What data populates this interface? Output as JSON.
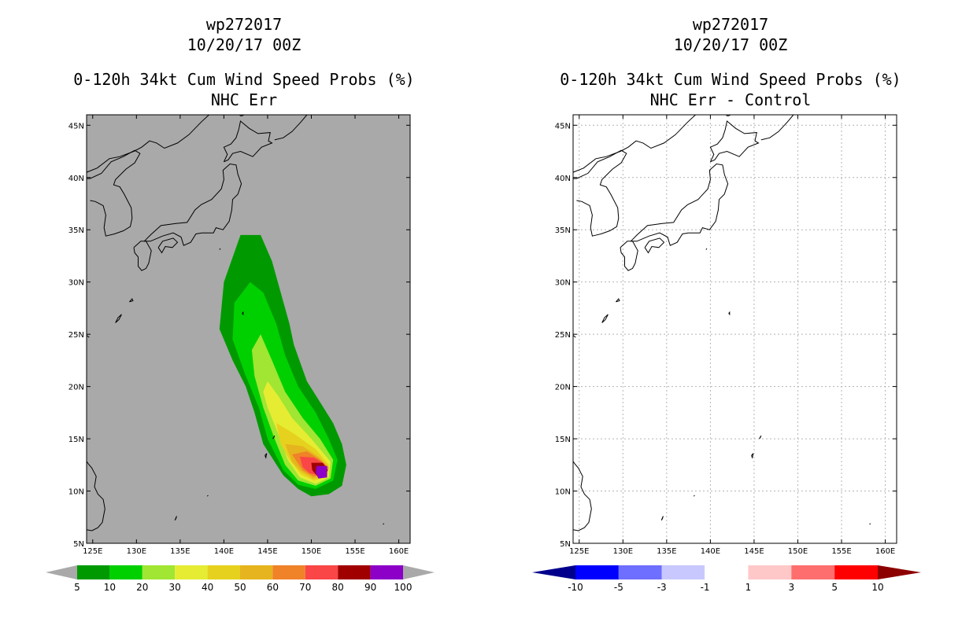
{
  "left": {
    "title": {
      "line1": "wp272017",
      "line2": "10/20/17 00Z",
      "line3": "0-120h 34kt Cum Wind Speed Probs (%)",
      "line4": "NHC Err"
    },
    "colors": {
      "background": "#a9a9a9",
      "land_outline": "#000000"
    },
    "colorbar": {
      "labels": [
        "5",
        "10",
        "20",
        "30",
        "40",
        "50",
        "60",
        "70",
        "80",
        "90",
        "100"
      ],
      "colors": [
        "#009a00",
        "#00d000",
        "#a0e632",
        "#e6ec32",
        "#e6d21e",
        "#e6b41e",
        "#f08228",
        "#fa4646",
        "#a00000",
        "#8c00c8"
      ],
      "low_arrow": "#a9a9a9",
      "high_arrow": "#a9a9a9"
    }
  },
  "right": {
    "title": {
      "line1": "wp272017",
      "line2": "10/20/17 00Z",
      "line3": "0-120h 34kt Cum Wind Speed Probs (%)",
      "line4": "NHC Err - Control"
    },
    "colors": {
      "background": "#ffffff",
      "land_outline": "#000000",
      "grid": "#b4b4b4"
    },
    "colorbar": {
      "labels": [
        "-10",
        "-5",
        "-3",
        "-1",
        "1",
        "3",
        "5",
        "10"
      ],
      "colors": [
        "#0000ff",
        "#6e6eff",
        "#c8c8ff",
        "#ffffff",
        "#ffc8c8",
        "#ff6e6e",
        "#ff0000"
      ],
      "low_arrow": "#00008c",
      "high_arrow": "#8c0000"
    }
  },
  "chart_data": {
    "type": "heatmap",
    "title": "0-120h 34kt Cum Wind Speed Probs (%)",
    "xlabel": "",
    "ylabel": "",
    "xlim": [
      124.3,
      161.3
    ],
    "ylim": [
      5,
      46
    ],
    "x_ticks": [
      125,
      130,
      135,
      140,
      145,
      150,
      155,
      160
    ],
    "x_tick_labels": [
      "125E",
      "130E",
      "135E",
      "140E",
      "145E",
      "150E",
      "155E",
      "160E"
    ],
    "y_ticks": [
      5,
      10,
      15,
      20,
      25,
      30,
      35,
      40,
      45
    ],
    "y_tick_labels": [
      "5N",
      "10N",
      "15N",
      "20N",
      "25N",
      "30N",
      "35N",
      "40N",
      "45N"
    ],
    "probability_contours": [
      {
        "level": 5,
        "polygon": [
          [
            141.9,
            34.5
          ],
          [
            144.2,
            34.5
          ],
          [
            145.5,
            32
          ],
          [
            146.5,
            29
          ],
          [
            147.5,
            26
          ],
          [
            148.0,
            24
          ],
          [
            149.5,
            20.5
          ],
          [
            151.0,
            18.5
          ],
          [
            152.5,
            16.5
          ],
          [
            153.5,
            14.5
          ],
          [
            154.0,
            12.5
          ],
          [
            153.5,
            10.5
          ],
          [
            152.0,
            9.7
          ],
          [
            150.0,
            9.5
          ],
          [
            148.5,
            10.2
          ],
          [
            146.8,
            11.5
          ],
          [
            144.5,
            14.5
          ],
          [
            143.5,
            17.5
          ],
          [
            142.5,
            20.0
          ],
          [
            141.0,
            22.5
          ],
          [
            139.5,
            25.5
          ],
          [
            140.0,
            30.0
          ]
        ]
      },
      {
        "level": 10,
        "polygon": [
          [
            143.0,
            30.0
          ],
          [
            144.5,
            29.0
          ],
          [
            146.0,
            26.0
          ],
          [
            147.0,
            23.0
          ],
          [
            148.5,
            20.0
          ],
          [
            150.5,
            17.5
          ],
          [
            152.0,
            15.0
          ],
          [
            153.0,
            13.0
          ],
          [
            152.5,
            11.0
          ],
          [
            150.5,
            10.2
          ],
          [
            148.5,
            10.6
          ],
          [
            146.8,
            12.0
          ],
          [
            145.0,
            15.0
          ],
          [
            144.0,
            18.0
          ],
          [
            142.5,
            21.0
          ],
          [
            141.0,
            24.5
          ],
          [
            141.2,
            28.0
          ]
        ]
      },
      {
        "level": 20,
        "polygon": [
          [
            144.2,
            25.0
          ],
          [
            145.5,
            22.5
          ],
          [
            147.0,
            19.5
          ],
          [
            149.0,
            17.0
          ],
          [
            151.0,
            15.0
          ],
          [
            152.5,
            13.0
          ],
          [
            152.2,
            11.2
          ],
          [
            150.5,
            10.5
          ],
          [
            148.5,
            11.0
          ],
          [
            147.0,
            12.5
          ],
          [
            145.8,
            15.0
          ],
          [
            144.5,
            18.0
          ],
          [
            143.5,
            21.0
          ],
          [
            143.2,
            23.5
          ]
        ]
      },
      {
        "level": 30,
        "polygon": [
          [
            145.0,
            20.5
          ],
          [
            146.3,
            19.0
          ],
          [
            147.8,
            17.0
          ],
          [
            150.0,
            15.0
          ],
          [
            152.2,
            12.8
          ],
          [
            152.0,
            11.3
          ],
          [
            150.5,
            10.7
          ],
          [
            148.7,
            11.3
          ],
          [
            147.3,
            13.0
          ],
          [
            146.2,
            15.5
          ],
          [
            145.0,
            18.0
          ],
          [
            144.5,
            19.5
          ]
        ]
      },
      {
        "level": 40,
        "polygon": [
          [
            146.0,
            16.5
          ],
          [
            148.0,
            15.5
          ],
          [
            150.5,
            14.0
          ],
          [
            152.0,
            12.5
          ],
          [
            151.8,
            11.4
          ],
          [
            150.3,
            11.0
          ],
          [
            148.8,
            11.6
          ],
          [
            147.5,
            13.0
          ],
          [
            146.5,
            14.5
          ]
        ]
      },
      {
        "level": 50,
        "polygon": [
          [
            147.0,
            14.5
          ],
          [
            149.0,
            14.3
          ],
          [
            150.8,
            13.3
          ],
          [
            152.0,
            12.3
          ],
          [
            151.6,
            11.5
          ],
          [
            150.2,
            11.2
          ],
          [
            148.8,
            11.9
          ],
          [
            147.8,
            12.8
          ]
        ]
      },
      {
        "level": 60,
        "polygon": [
          [
            147.8,
            13.5
          ],
          [
            149.5,
            13.8
          ],
          [
            151.0,
            13.0
          ],
          [
            152.0,
            12.2
          ],
          [
            151.5,
            11.5
          ],
          [
            150.2,
            11.4
          ],
          [
            149.0,
            12.0
          ]
        ]
      },
      {
        "level": 70,
        "polygon": [
          [
            148.7,
            13.3
          ],
          [
            150.3,
            13.2
          ],
          [
            151.5,
            12.6
          ],
          [
            151.8,
            11.8
          ],
          [
            151.0,
            11.5
          ],
          [
            149.8,
            11.7
          ],
          [
            149.0,
            12.3
          ]
        ]
      },
      {
        "level": 80,
        "polygon": [
          [
            150.0,
            12.7
          ],
          [
            151.3,
            12.7
          ],
          [
            151.9,
            12.0
          ],
          [
            151.5,
            11.4
          ],
          [
            150.6,
            11.5
          ],
          [
            150.1,
            12.0
          ]
        ]
      },
      {
        "level": 90,
        "polygon": [
          [
            150.6,
            12.4
          ],
          [
            151.8,
            12.4
          ],
          [
            151.8,
            11.3
          ],
          [
            150.8,
            11.2
          ],
          [
            150.5,
            11.8
          ]
        ]
      }
    ]
  }
}
